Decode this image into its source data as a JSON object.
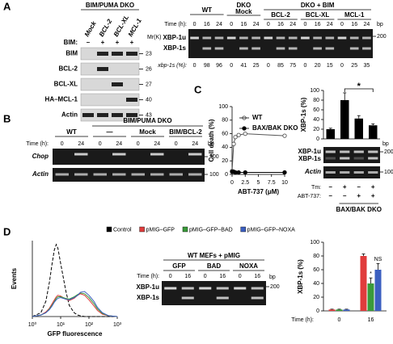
{
  "panel_a": {
    "label": "A",
    "blot_group": "BIM/PUMA DKO",
    "lanes": [
      "Mock",
      "BCL-2",
      "BCL-XL",
      "MCL-1"
    ],
    "bim_label": "BIM:",
    "bim": [
      "–",
      "+",
      "+",
      "+"
    ],
    "mr_label": "Mr(K)",
    "rows": [
      "BIM",
      "BCL-2",
      "BCL-XL",
      "HA–MCL-1",
      "Actin"
    ],
    "mw": [
      23,
      26,
      27,
      40,
      43
    ],
    "gel": {
      "wt": "WT",
      "dko_mock": [
        "DKO",
        "Mock"
      ],
      "dko_bim": "DKO + BIM",
      "groups": [
        "BCL-2",
        "BCL-XL",
        "MCL-1"
      ],
      "time_label": "Time (h):",
      "times": [
        0,
        16,
        24,
        0,
        16,
        24,
        0,
        16,
        24,
        0,
        16,
        24,
        0,
        16,
        24
      ],
      "bp": "bp",
      "marker": 200,
      "bands": [
        "XBP-1u",
        "XBP-1s"
      ],
      "pct_label": "xbp-1s (%):",
      "pct": [
        0,
        98,
        96,
        0,
        41,
        25,
        0,
        85,
        75,
        0,
        20,
        15,
        0,
        25,
        35
      ]
    }
  },
  "panel_b": {
    "label": "B",
    "group": "BIM/PUMA DKO",
    "lanes": [
      "WT",
      "—",
      "Mock",
      "BIM/BCL-2"
    ],
    "time_label": "Time (h):",
    "times": [
      0,
      24,
      0,
      24,
      0,
      24,
      0,
      24
    ],
    "bp": "bp",
    "markers": [
      100,
      100
    ],
    "rows": [
      "Chop",
      "Actin"
    ]
  },
  "panel_c": {
    "label": "C",
    "gel": {
      "bp": "bp",
      "markers": [
        200,
        100
      ],
      "rows": [
        "XBP-1u",
        "XBP-1s",
        "Actin"
      ],
      "conditions": [
        {
          "label": "Tm:",
          "values": [
            "–",
            "+",
            "–",
            "+"
          ]
        },
        {
          "label": "ABT-737:",
          "values": [
            "–",
            "–",
            "+",
            "+"
          ]
        }
      ],
      "group": "BAX/BAK DKO"
    }
  },
  "panel_d": {
    "label": "D",
    "gel": {
      "title": "WT MEFs + pMIG",
      "groups": [
        "GFP",
        "BAD",
        "NOXA"
      ],
      "time_label": "Time (h):",
      "times": [
        0,
        16,
        0,
        16,
        0,
        16
      ],
      "bands": [
        "XBP-1u",
        "XBP-1s"
      ],
      "bp": "bp",
      "marker": 200
    }
  },
  "chart_data": [
    {
      "type": "line",
      "ylabel": "Cell death (%)",
      "xlabel": "ABT-737 (μM)",
      "x": [
        0,
        0.31,
        0.63,
        1.25,
        2.5,
        10
      ],
      "xlim": [
        0,
        10
      ],
      "xticks": [
        0,
        2.5,
        5,
        7.5,
        10
      ],
      "ylim": [
        0,
        100
      ],
      "yticks": [
        0,
        20,
        40,
        60,
        80,
        100
      ],
      "series": [
        {
          "name": "WT",
          "color": "#555555",
          "marker": "open",
          "values": [
            5,
            45,
            55,
            58,
            60,
            57
          ]
        },
        {
          "name": "BAX/BAK DKO",
          "color": "#000000",
          "marker": "filled",
          "values": [
            4,
            4,
            3,
            3,
            3,
            3
          ]
        }
      ]
    },
    {
      "type": "bar",
      "ylabel": "XBP-1s (%)",
      "values": [
        20,
        80,
        42,
        28
      ],
      "errors": [
        2,
        15,
        6,
        3
      ],
      "color": "#000000",
      "ylim": [
        0,
        100
      ],
      "yticks": [
        0,
        20,
        40,
        60,
        80,
        100
      ],
      "annotations": [
        "*"
      ]
    },
    {
      "type": "line",
      "ylabel": "Events",
      "xlabel": "GFP fluorescence",
      "xscale": "log",
      "x": [
        1,
        2,
        3,
        4,
        5,
        6,
        7,
        8,
        10,
        15,
        20,
        30,
        40,
        50,
        70,
        100,
        150,
        200,
        300,
        500,
        1000
      ],
      "xlim": [
        1,
        1000
      ],
      "xticks": [
        {
          "value": 1,
          "label": "10⁰"
        },
        {
          "value": 10,
          "label": "10¹"
        },
        {
          "value": 100,
          "label": "10²"
        },
        {
          "value": 1000,
          "label": "10³"
        }
      ],
      "ylim": [
        0,
        100
      ],
      "series": [
        {
          "name": "Control",
          "color": "#000000",
          "line_style": "dashed",
          "values": [
            0,
            5,
            20,
            45,
            70,
            88,
            95,
            90,
            70,
            35,
            15,
            5,
            2,
            1,
            0,
            0,
            0,
            0,
            0,
            0,
            0
          ]
        },
        {
          "name": "pMIG–GFP",
          "color": "#e03c3c",
          "line_style": "solid",
          "values": [
            0,
            2,
            6,
            11,
            17,
            22,
            26,
            28,
            27,
            23,
            21,
            24,
            28,
            30,
            28,
            22,
            14,
            8,
            3,
            1,
            0
          ]
        },
        {
          "name": "pMIG–GFP–BAD",
          "color": "#3a9a3a",
          "line_style": "solid",
          "values": [
            0,
            2,
            5,
            10,
            15,
            20,
            24,
            26,
            26,
            24,
            23,
            26,
            29,
            31,
            30,
            25,
            17,
            10,
            4,
            1,
            0
          ]
        },
        {
          "name": "pMIG–GFP–NOXA",
          "color": "#3b5fc0",
          "line_style": "solid",
          "values": [
            0,
            2,
            5,
            9,
            14,
            19,
            22,
            24,
            25,
            23,
            22,
            25,
            28,
            32,
            33,
            28,
            20,
            12,
            5,
            1,
            0
          ]
        }
      ]
    },
    {
      "type": "bar",
      "ylabel": "XBP-1s (%)",
      "xlabel": "Time (h):",
      "categories": [
        "0",
        "16"
      ],
      "ylim": [
        0,
        100
      ],
      "yticks": [
        0,
        20,
        40,
        60,
        80,
        100
      ],
      "series": [
        {
          "color": "#e03c3c",
          "values": [
            2,
            80
          ],
          "errors": [
            0.5,
            3
          ]
        },
        {
          "color": "#3a9a3a",
          "values": [
            2,
            40
          ],
          "errors": [
            0.5,
            8
          ]
        },
        {
          "color": "#3b5fc0",
          "values": [
            2,
            60
          ],
          "errors": [
            0.5,
            9
          ]
        }
      ],
      "annotations": [
        "*",
        "NS"
      ]
    }
  ]
}
